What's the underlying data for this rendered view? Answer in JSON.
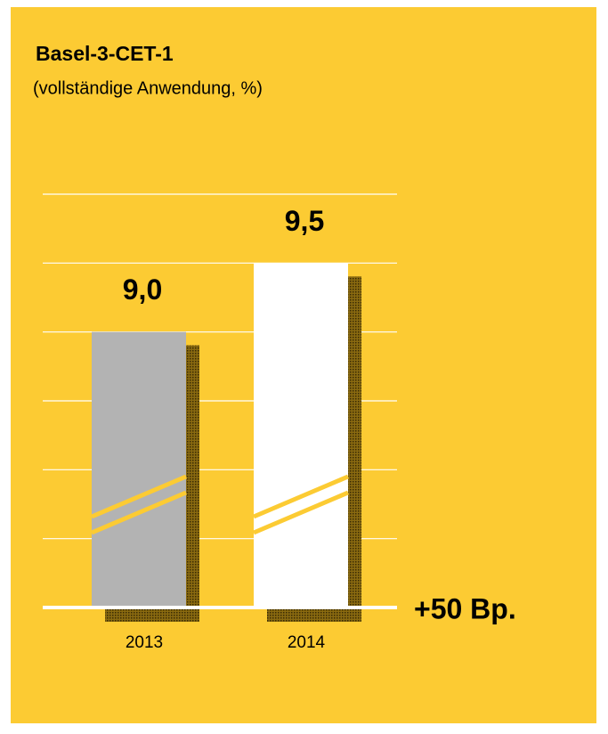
{
  "chart_data": {
    "type": "bar",
    "title": "Basel-3-CET-1",
    "subtitle": "(vollständige Anwendung, %)",
    "categories": [
      "2013",
      "2014"
    ],
    "values": [
      9.0,
      9.5
    ],
    "value_labels": [
      "9,0",
      "9,5"
    ],
    "colors": [
      "#b3b3b3",
      "#ffffff"
    ],
    "ylim": [
      7,
      10
    ],
    "yticks": [
      7,
      7.5,
      8,
      8.5,
      9,
      9.5,
      10
    ],
    "grid": true,
    "annotation": "+50 Bp."
  }
}
